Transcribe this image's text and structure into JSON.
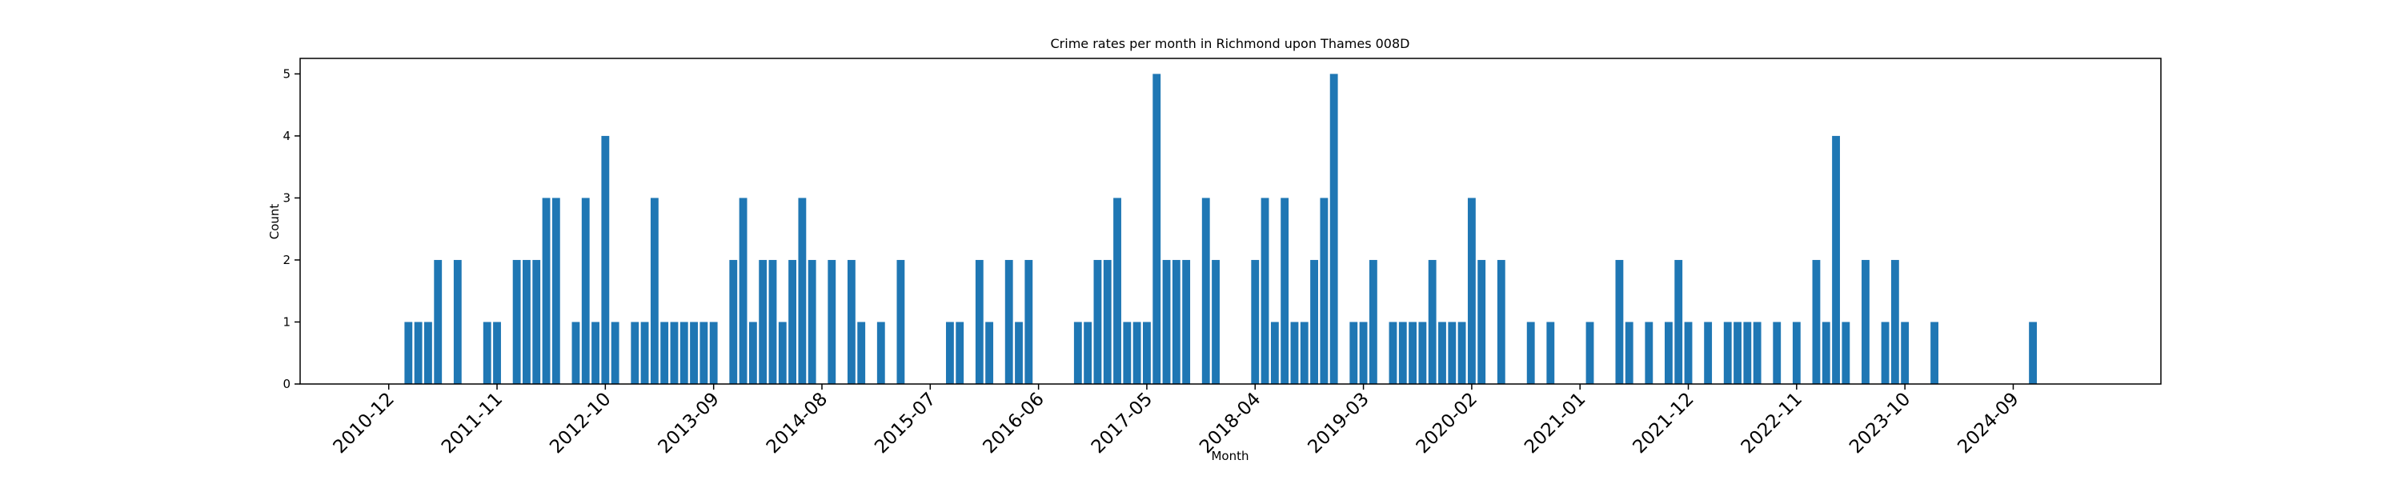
{
  "chart_data": {
    "type": "bar",
    "title": "Crime rates per month in Richmond upon Thames 008D",
    "xlabel": "Month",
    "ylabel": "Count",
    "color": "#1f77b4",
    "x": [
      "2011-02",
      "2011-03",
      "2011-04",
      "2011-05",
      "2011-07",
      "2011-10",
      "2011-11",
      "2012-01",
      "2012-02",
      "2012-03",
      "2012-04",
      "2012-05",
      "2012-07",
      "2012-08",
      "2012-09",
      "2012-10",
      "2012-11",
      "2013-01",
      "2013-02",
      "2013-03",
      "2013-04",
      "2013-05",
      "2013-06",
      "2013-07",
      "2013-08",
      "2013-09",
      "2013-11",
      "2013-12",
      "2014-01",
      "2014-02",
      "2014-03",
      "2014-04",
      "2014-05",
      "2014-06",
      "2014-07",
      "2014-09",
      "2014-11",
      "2014-12",
      "2015-02",
      "2015-04",
      "2015-09",
      "2015-10",
      "2015-12",
      "2016-01",
      "2016-03",
      "2016-04",
      "2016-05",
      "2016-10",
      "2016-11",
      "2016-12",
      "2017-01",
      "2017-02",
      "2017-03",
      "2017-04",
      "2017-05",
      "2017-06",
      "2017-07",
      "2017-08",
      "2017-09",
      "2017-11",
      "2017-12",
      "2018-04",
      "2018-05",
      "2018-06",
      "2018-07",
      "2018-08",
      "2018-09",
      "2018-10",
      "2018-11",
      "2018-12",
      "2019-02",
      "2019-03",
      "2019-04",
      "2019-06",
      "2019-07",
      "2019-08",
      "2019-09",
      "2019-10",
      "2019-11",
      "2019-12",
      "2020-01",
      "2020-02",
      "2020-03",
      "2020-05",
      "2020-08",
      "2020-10",
      "2021-02",
      "2021-05",
      "2021-06",
      "2021-08",
      "2021-10",
      "2021-11",
      "2021-12",
      "2022-02",
      "2022-04",
      "2022-05",
      "2022-06",
      "2022-07",
      "2022-09",
      "2022-11",
      "2023-01",
      "2023-02",
      "2023-03",
      "2023-04",
      "2023-06",
      "2023-08",
      "2023-09",
      "2023-10",
      "2024-01",
      "2024-11"
    ],
    "values": [
      1,
      1,
      1,
      2,
      2,
      1,
      1,
      2,
      2,
      2,
      3,
      3,
      1,
      3,
      1,
      4,
      1,
      1,
      1,
      3,
      1,
      1,
      1,
      1,
      1,
      1,
      2,
      3,
      1,
      2,
      2,
      1,
      2,
      3,
      2,
      2,
      2,
      1,
      1,
      2,
      1,
      1,
      2,
      1,
      2,
      1,
      2,
      1,
      1,
      2,
      2,
      3,
      1,
      1,
      1,
      5,
      2,
      2,
      2,
      3,
      2,
      2,
      3,
      1,
      3,
      1,
      1,
      2,
      3,
      5,
      1,
      1,
      2,
      1,
      1,
      1,
      1,
      2,
      1,
      1,
      1,
      3,
      2,
      2,
      1,
      1,
      1,
      2,
      1,
      1,
      1,
      2,
      1,
      1,
      1,
      1,
      1,
      1,
      1,
      1,
      2,
      1,
      4,
      1,
      2,
      1,
      2,
      1,
      1,
      1
    ],
    "xlim": [
      "2010-03",
      "2025-12"
    ],
    "xticks": [
      "2010-12",
      "2011-11",
      "2012-10",
      "2013-09",
      "2014-08",
      "2015-07",
      "2016-06",
      "2017-05",
      "2018-04",
      "2019-03",
      "2020-02",
      "2021-01",
      "2021-12",
      "2022-11",
      "2023-10",
      "2024-09"
    ],
    "ylim": [
      0,
      5.25
    ],
    "yticks": [
      0,
      1,
      2,
      3,
      4,
      5
    ]
  }
}
